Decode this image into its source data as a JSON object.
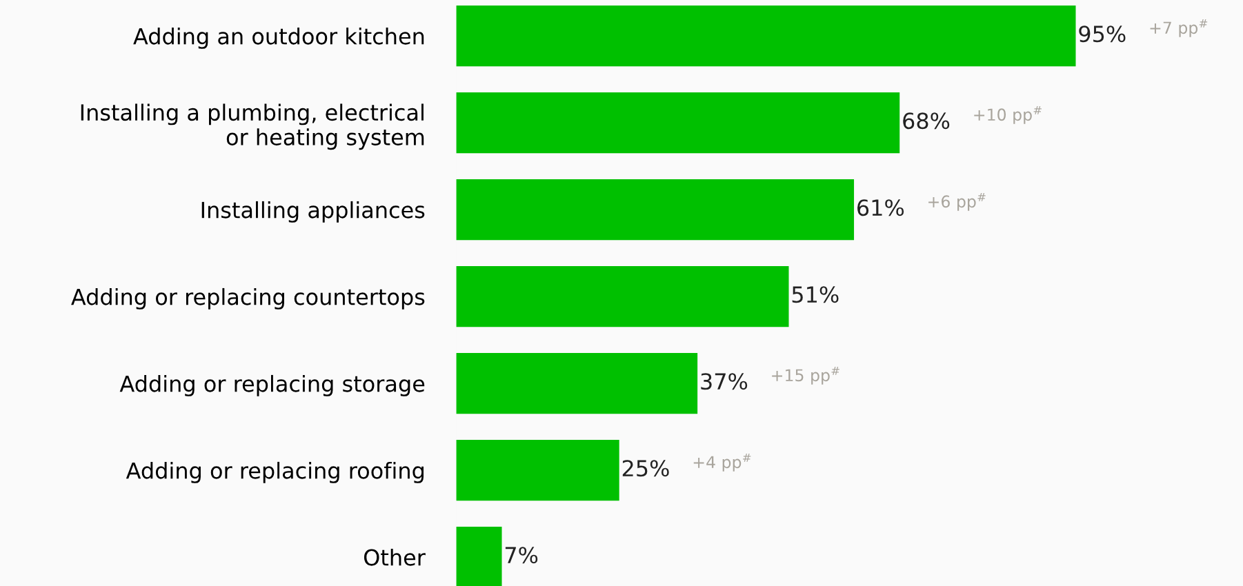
{
  "chart_data": {
    "type": "bar",
    "orientation": "horizontal",
    "categories": [
      "Adding an outdoor kitchen",
      "Installing a plumbing, electrical\nor heating system",
      "Installing appliances",
      "Adding or replacing countertops",
      "Adding or replacing storage",
      "Adding or replacing roofing",
      "Other"
    ],
    "values": [
      95,
      68,
      61,
      51,
      37,
      25,
      7
    ],
    "color": "#00c000",
    "value_labels": [
      "95%",
      "68%",
      "61%",
      "51%",
      "37%",
      "25%",
      "7%"
    ],
    "annotations": [
      "+7 pp$^{#}$",
      "+10 pp$^{#}$",
      "+6 pp$^{#}$",
      "+15 pp$^{#}$",
      "+4 pp$^{#}$"
    ],
    "grid": false,
    "legend": false,
    "tick_labels": "y"
  }
}
